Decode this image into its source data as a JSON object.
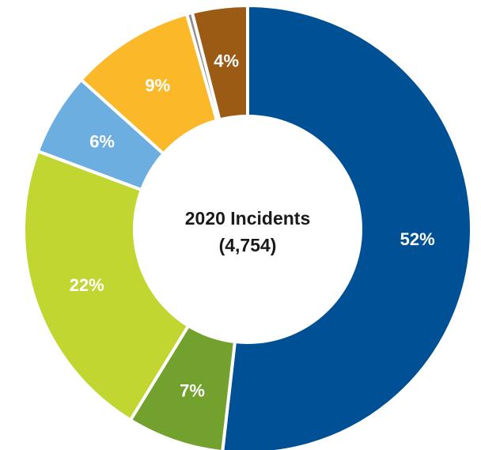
{
  "chart_data": {
    "type": "pie",
    "style": "donut",
    "center_title": "2020 Incidents",
    "center_subtitle": "(4,754)",
    "total": 4754,
    "slices": [
      {
        "value": 52,
        "label": "52%",
        "color": "#005096"
      },
      {
        "value": 7,
        "label": "7%",
        "color": "#72A12E"
      },
      {
        "value": 22,
        "label": "22%",
        "color": "#C2D632"
      },
      {
        "value": 6,
        "label": "6%",
        "color": "#6CAEE0"
      },
      {
        "value": 9,
        "label": "9%",
        "color": "#FBB829"
      },
      {
        "value": 0.4,
        "label": "",
        "color": "#8E8E8E"
      },
      {
        "value": 4,
        "label": "4%",
        "color": "#9C5B15"
      }
    ]
  }
}
